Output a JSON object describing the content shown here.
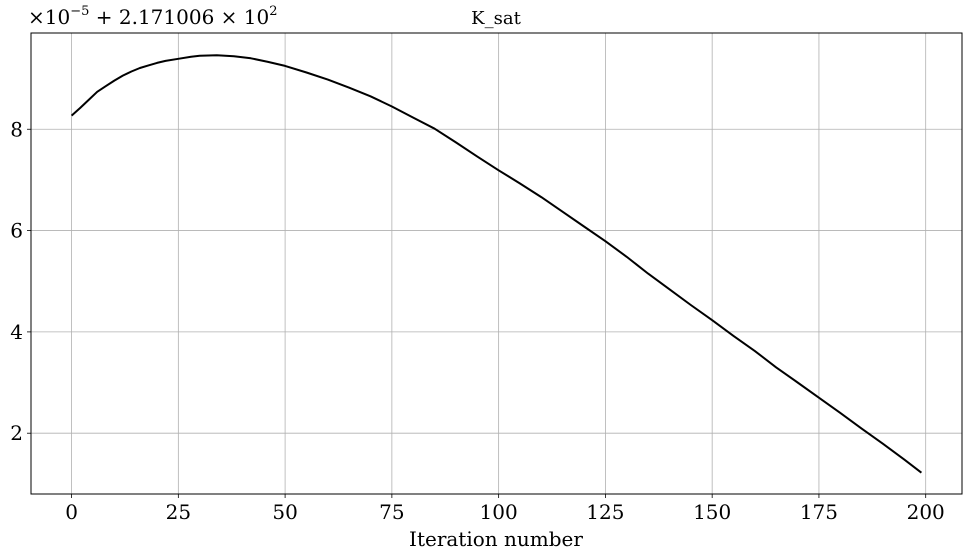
{
  "chart_data": {
    "type": "line",
    "title": "K_sat",
    "xlabel": "Iteration number",
    "ylabel": "",
    "offset_text": {
      "prefix": "×10",
      "exponent": "−5",
      "middle": " + 2.171006 × 10",
      "exponent2": "2"
    },
    "xlim": [
      -9.5,
      208.5
    ],
    "ylim": [
      0.8,
      9.9
    ],
    "xticks": [
      0,
      25,
      50,
      75,
      100,
      125,
      150,
      175,
      200
    ],
    "yticks": [
      2,
      4,
      6,
      8
    ],
    "grid": true,
    "line_color": "#000000",
    "series": [
      {
        "x": [
          0,
          2,
          4,
          6,
          8,
          10,
          12,
          14,
          16,
          18,
          20,
          22,
          25,
          28,
          30,
          34,
          38,
          42,
          46,
          50,
          55,
          60,
          65,
          70,
          75,
          80,
          85,
          90,
          95,
          100,
          105,
          110,
          115,
          120,
          125,
          130,
          135,
          140,
          145,
          150,
          155,
          160,
          165,
          170,
          175,
          180,
          185,
          190,
          195,
          199
        ],
        "y": [
          8.27,
          8.42,
          8.58,
          8.74,
          8.85,
          8.96,
          9.06,
          9.14,
          9.21,
          9.26,
          9.31,
          9.35,
          9.39,
          9.43,
          9.45,
          9.46,
          9.44,
          9.4,
          9.33,
          9.25,
          9.12,
          8.98,
          8.82,
          8.65,
          8.45,
          8.23,
          8.01,
          7.74,
          7.46,
          7.19,
          6.93,
          6.66,
          6.37,
          6.08,
          5.79,
          5.48,
          5.15,
          4.84,
          4.53,
          4.23,
          3.92,
          3.62,
          3.3,
          3.0,
          2.7,
          2.4,
          2.09,
          1.79,
          1.48,
          1.22
        ]
      }
    ]
  }
}
